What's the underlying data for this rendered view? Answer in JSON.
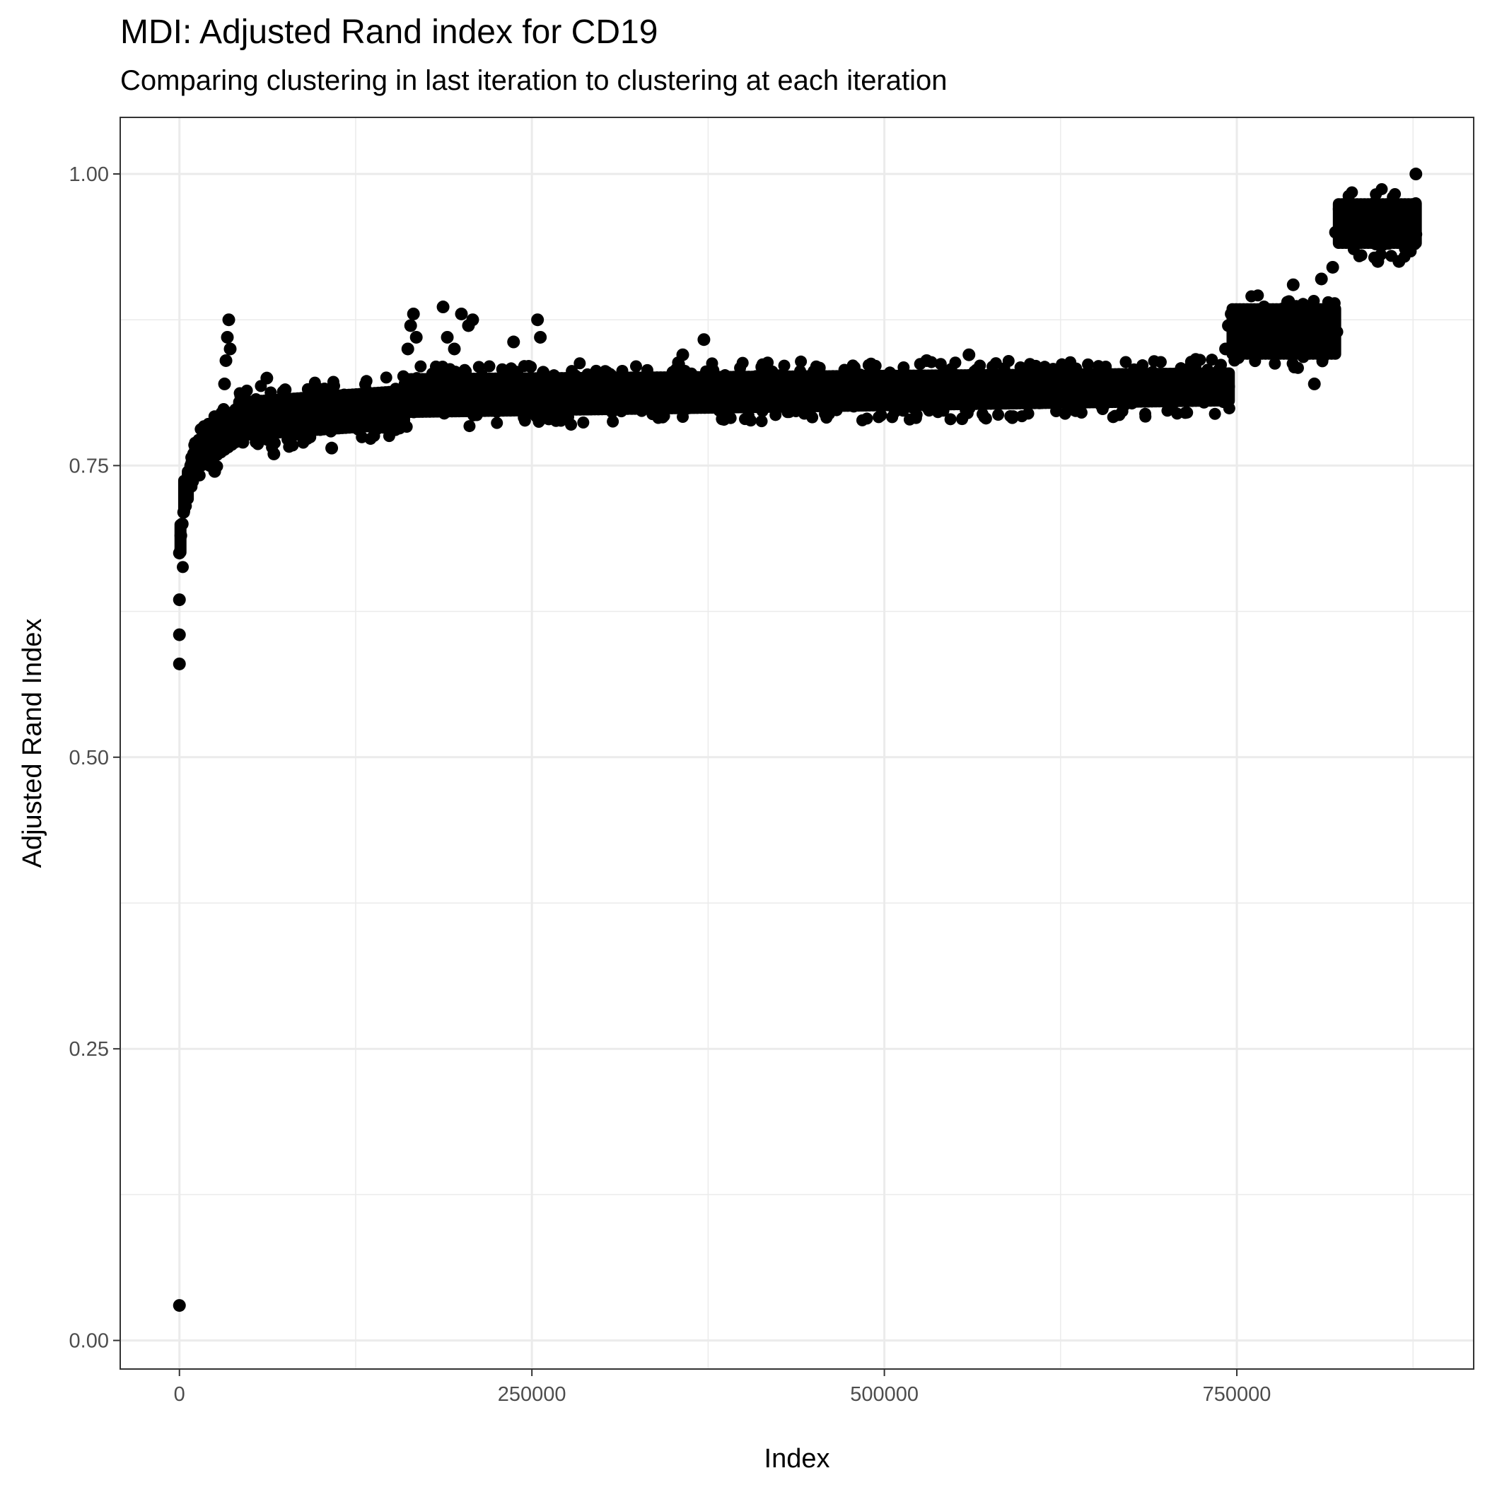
{
  "chart_data": {
    "type": "scatter",
    "title": "MDI: Adjusted Rand index for CD19",
    "subtitle": "Comparing clustering in last iteration to clustering at each iteration",
    "xlabel": "Index",
    "ylabel": "Adjusted Rand Index",
    "xlim": [
      -42000,
      918000
    ],
    "ylim": [
      -0.0245,
      1.0485
    ],
    "x_ticks": [
      0,
      250000,
      500000,
      750000
    ],
    "x_tick_labels": [
      "0",
      "250000",
      "500000",
      "750000"
    ],
    "y_ticks": [
      0.0,
      0.25,
      0.5,
      0.75,
      1.0
    ],
    "y_tick_labels": [
      "0.00",
      "0.25",
      "0.50",
      "0.75",
      "1.00"
    ],
    "grid": true,
    "point_color": "#000000",
    "series": [
      {
        "values_note": "",
        "points": [
          [
            0,
            0.03
          ],
          [
            0,
            0.58
          ],
          [
            0,
            0.605
          ],
          [
            0,
            0.635
          ],
          [
            0,
            0.675
          ],
          [
            1000,
            0.69
          ],
          [
            2000,
            0.7
          ],
          [
            3000,
            0.71
          ],
          [
            4000,
            0.72
          ],
          [
            5000,
            0.73
          ],
          [
            6000,
            0.74
          ],
          [
            8000,
            0.75
          ],
          [
            10000,
            0.76
          ],
          [
            12000,
            0.765
          ],
          [
            15000,
            0.755
          ],
          [
            18000,
            0.77
          ],
          [
            20000,
            0.76
          ],
          [
            22000,
            0.775
          ],
          [
            25000,
            0.745
          ],
          [
            28000,
            0.78
          ],
          [
            30000,
            0.795
          ],
          [
            32000,
            0.82
          ],
          [
            33000,
            0.84
          ],
          [
            34000,
            0.86
          ],
          [
            35000,
            0.875
          ],
          [
            36000,
            0.85
          ],
          [
            38000,
            0.79
          ],
          [
            40000,
            0.775
          ],
          [
            45000,
            0.77
          ],
          [
            50000,
            0.785
          ],
          [
            55000,
            0.8
          ],
          [
            60000,
            0.79
          ],
          [
            62000,
            0.825
          ],
          [
            67000,
            0.76
          ],
          [
            70000,
            0.8
          ],
          [
            75000,
            0.815
          ],
          [
            80000,
            0.79
          ],
          [
            90000,
            0.8
          ],
          [
            100000,
            0.81
          ],
          [
            108000,
            0.765
          ],
          [
            110000,
            0.795
          ],
          [
            120000,
            0.8
          ],
          [
            130000,
            0.81
          ],
          [
            140000,
            0.79
          ],
          [
            150000,
            0.8
          ],
          [
            160000,
            0.82
          ],
          [
            162000,
            0.85
          ],
          [
            164000,
            0.87
          ],
          [
            166000,
            0.88
          ],
          [
            168000,
            0.86
          ],
          [
            170000,
            0.81
          ],
          [
            175000,
            0.8
          ],
          [
            180000,
            0.82
          ],
          [
            185000,
            0.83
          ],
          [
            187000,
            0.886
          ],
          [
            190000,
            0.86
          ],
          [
            195000,
            0.85
          ],
          [
            200000,
            0.88
          ],
          [
            205000,
            0.87
          ],
          [
            208000,
            0.875
          ],
          [
            210000,
            0.81
          ],
          [
            220000,
            0.8
          ],
          [
            230000,
            0.81
          ],
          [
            237000,
            0.856
          ],
          [
            240000,
            0.82
          ],
          [
            250000,
            0.81
          ],
          [
            254000,
            0.875
          ],
          [
            256000,
            0.86
          ],
          [
            258000,
            0.83
          ],
          [
            262000,
            0.79
          ],
          [
            270000,
            0.81
          ],
          [
            280000,
            0.82
          ],
          [
            290000,
            0.81
          ],
          [
            300000,
            0.8
          ],
          [
            310000,
            0.81
          ],
          [
            320000,
            0.82
          ],
          [
            330000,
            0.81
          ],
          [
            340000,
            0.8
          ],
          [
            350000,
            0.83
          ],
          [
            357000,
            0.845
          ],
          [
            360000,
            0.82
          ],
          [
            370000,
            0.815
          ],
          [
            372000,
            0.858
          ],
          [
            380000,
            0.81
          ],
          [
            385000,
            0.79
          ],
          [
            400000,
            0.82
          ],
          [
            420000,
            0.81
          ],
          [
            440000,
            0.82
          ],
          [
            460000,
            0.81
          ],
          [
            480000,
            0.82
          ],
          [
            500000,
            0.815
          ],
          [
            520000,
            0.8
          ],
          [
            530000,
            0.84
          ],
          [
            540000,
            0.82
          ],
          [
            550000,
            0.81
          ],
          [
            560000,
            0.845
          ],
          [
            570000,
            0.81
          ],
          [
            580000,
            0.82
          ],
          [
            600000,
            0.815
          ],
          [
            620000,
            0.81
          ],
          [
            640000,
            0.82
          ],
          [
            660000,
            0.815
          ],
          [
            680000,
            0.81
          ],
          [
            700000,
            0.82
          ],
          [
            720000,
            0.81
          ],
          [
            740000,
            0.82
          ],
          [
            742000,
            0.85
          ],
          [
            744000,
            0.87
          ],
          [
            746000,
            0.88
          ],
          [
            750000,
            0.86
          ],
          [
            760000,
            0.87
          ],
          [
            770000,
            0.88
          ],
          [
            780000,
            0.86
          ],
          [
            790000,
            0.905
          ],
          [
            800000,
            0.87
          ],
          [
            805000,
            0.82
          ],
          [
            810000,
            0.91
          ],
          [
            815000,
            0.88
          ],
          [
            818000,
            0.92
          ],
          [
            820000,
            0.95
          ],
          [
            825000,
            0.96
          ],
          [
            830000,
            0.97
          ],
          [
            840000,
            0.96
          ],
          [
            850000,
            0.925
          ],
          [
            860000,
            0.95
          ],
          [
            865000,
            0.925
          ],
          [
            870000,
            0.96
          ],
          [
            875000,
            0.97
          ],
          [
            876000,
            0.94
          ],
          [
            877000,
            1.0
          ]
        ]
      }
    ]
  }
}
